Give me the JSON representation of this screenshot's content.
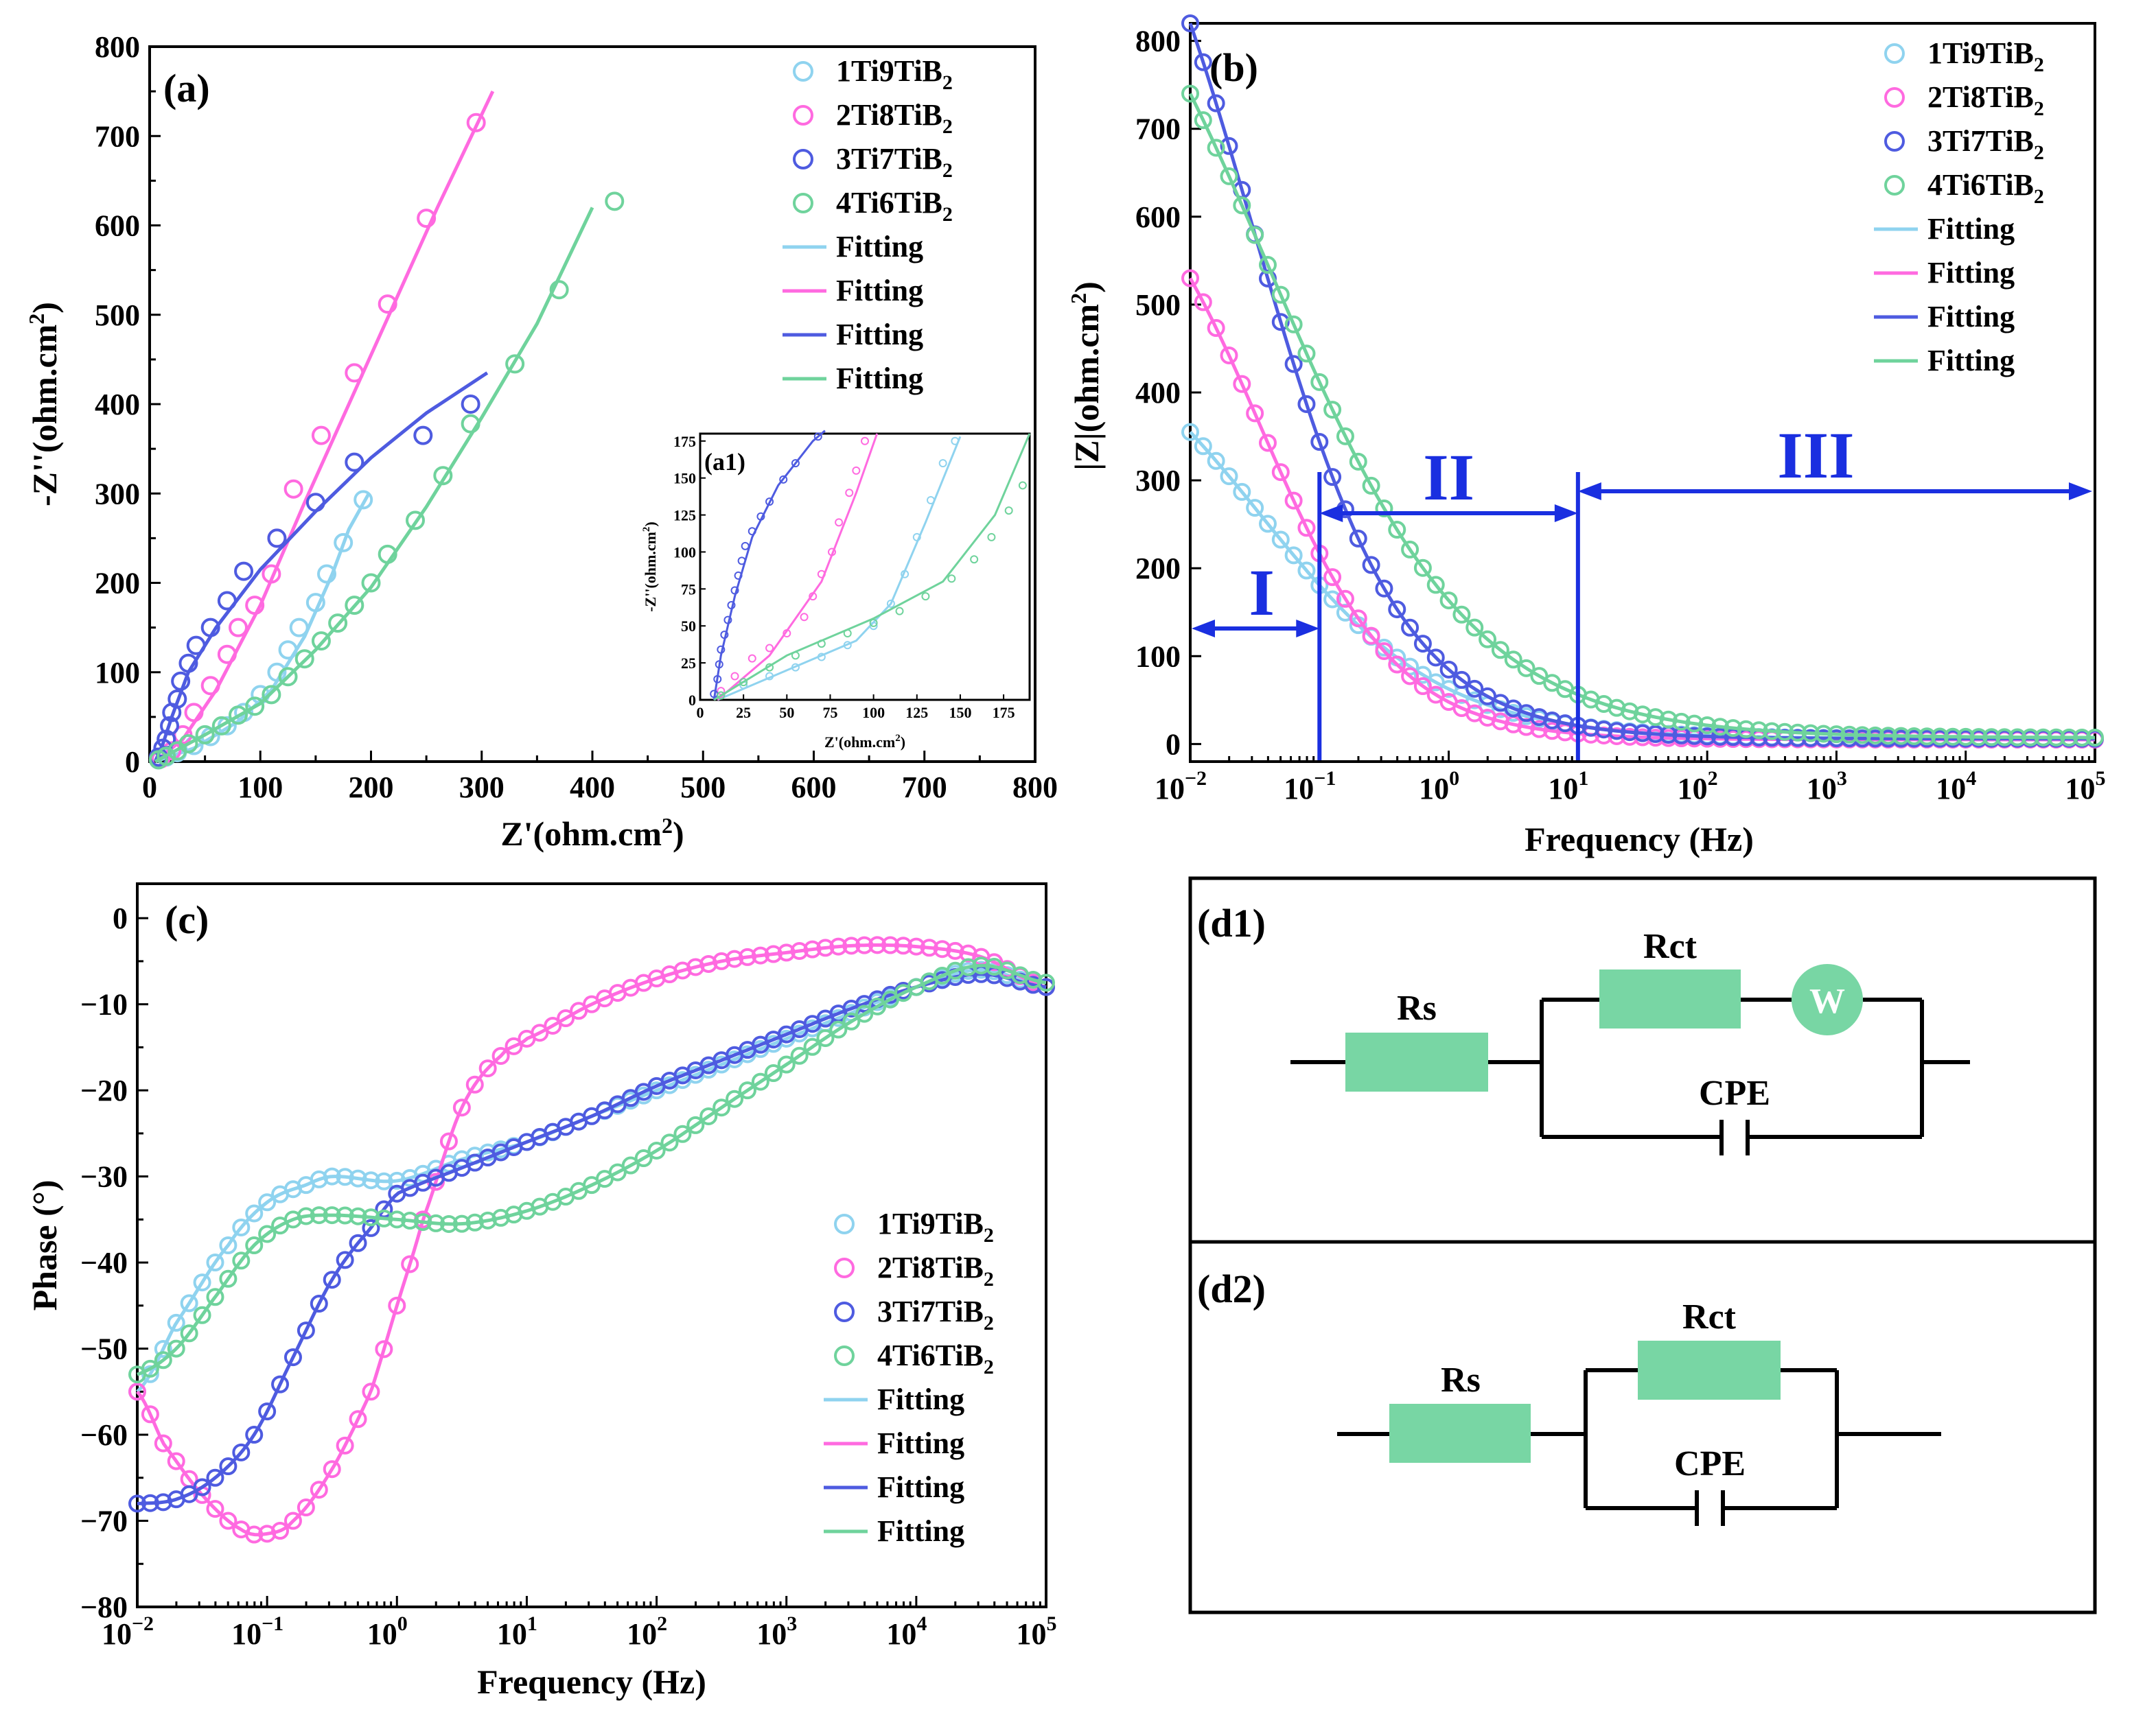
{
  "colors": {
    "s1": "#8fd3ef",
    "s2": "#ff6ae0",
    "s3": "#4e5be0",
    "s4": "#6fd39c",
    "region": "#1a2fe0",
    "resistor": "#78d6a4"
  },
  "legend": {
    "names": [
      "1Ti9TiB₂",
      "2Ti8TiB₂",
      "3Ti7TiB₂",
      "4Ti6TiB₂"
    ],
    "fit": "Fitting"
  },
  "chart_data": [
    {
      "id": "a",
      "type": "scatter",
      "panel_label": "(a)",
      "xlabel": "Z'(ohm.cm²)",
      "ylabel": "-Z''(ohm.cm²)",
      "xlim": [
        0,
        800
      ],
      "ylim": [
        0,
        800
      ],
      "xticks": [
        0,
        100,
        200,
        300,
        400,
        500,
        600,
        700,
        800
      ],
      "yticks": [
        0,
        100,
        200,
        300,
        400,
        500,
        600,
        700,
        800
      ],
      "legend_position": "top-right",
      "series": [
        {
          "name": "1Ti9TiB₂",
          "points": [
            [
              8,
              2
            ],
            [
              15,
              5
            ],
            [
              25,
              10
            ],
            [
              40,
              18
            ],
            [
              55,
              28
            ],
            [
              70,
              40
            ],
            [
              85,
              55
            ],
            [
              100,
              75
            ],
            [
              115,
              100
            ],
            [
              125,
              125
            ],
            [
              135,
              150
            ],
            [
              150,
              178
            ],
            [
              160,
              210
            ],
            [
              175,
              245
            ],
            [
              193,
              293
            ]
          ],
          "fit": [
            [
              5,
              0
            ],
            [
              40,
              15
            ],
            [
              80,
              45
            ],
            [
              110,
              80
            ],
            [
              140,
              140
            ],
            [
              165,
              210
            ],
            [
              180,
              260
            ],
            [
              198,
              300
            ]
          ]
        },
        {
          "name": "2Ti8TiB₂",
          "points": [
            [
              10,
              3
            ],
            [
              20,
              12
            ],
            [
              30,
              30
            ],
            [
              40,
              55
            ],
            [
              55,
              85
            ],
            [
              70,
              120
            ],
            [
              80,
              150
            ],
            [
              95,
              175
            ],
            [
              110,
              210
            ],
            [
              115,
              250
            ],
            [
              130,
              305
            ],
            [
              155,
              365
            ],
            [
              185,
              435
            ],
            [
              215,
              512
            ],
            [
              250,
              608
            ],
            [
              295,
              715
            ]
          ],
          "fit": [
            [
              5,
              0
            ],
            [
              30,
              25
            ],
            [
              60,
              80
            ],
            [
              100,
              175
            ],
            [
              140,
              290
            ],
            [
              180,
              400
            ],
            [
              220,
              510
            ],
            [
              260,
              620
            ],
            [
              310,
              750
            ]
          ]
        },
        {
          "name": "3Ti7TiB₂",
          "points": [
            [
              8,
              5
            ],
            [
              12,
              15
            ],
            [
              15,
              25
            ],
            [
              18,
              40
            ],
            [
              20,
              55
            ],
            [
              25,
              70
            ],
            [
              28,
              90
            ],
            [
              35,
              110
            ],
            [
              42,
              130
            ],
            [
              55,
              150
            ],
            [
              70,
              180
            ],
            [
              85,
              213
            ],
            [
              115,
              250
            ],
            [
              150,
              290
            ],
            [
              185,
              335
            ],
            [
              247,
              365
            ],
            [
              290,
              400
            ]
          ],
          "fit": [
            [
              5,
              0
            ],
            [
              12,
              20
            ],
            [
              20,
              50
            ],
            [
              35,
              100
            ],
            [
              60,
              150
            ],
            [
              100,
              215
            ],
            [
              150,
              280
            ],
            [
              200,
              340
            ],
            [
              250,
              390
            ],
            [
              305,
              435
            ]
          ]
        },
        {
          "name": "4Ti6TiB₂",
          "points": [
            [
              8,
              2
            ],
            [
              15,
              6
            ],
            [
              25,
              12
            ],
            [
              35,
              20
            ],
            [
              50,
              30
            ],
            [
              65,
              40
            ],
            [
              80,
              52
            ],
            [
              95,
              62
            ],
            [
              110,
              75
            ],
            [
              125,
              95
            ],
            [
              140,
              115
            ],
            [
              155,
              135
            ],
            [
              170,
              155
            ],
            [
              185,
              175
            ],
            [
              200,
              200
            ],
            [
              215,
              232
            ],
            [
              240,
              270
            ],
            [
              265,
              320
            ],
            [
              290,
              378
            ],
            [
              330,
              445
            ],
            [
              370,
              528
            ],
            [
              420,
              627
            ]
          ],
          "fit": [
            [
              5,
              0
            ],
            [
              50,
              30
            ],
            [
              100,
              65
            ],
            [
              150,
              125
            ],
            [
              200,
              195
            ],
            [
              250,
              285
            ],
            [
              300,
              385
            ],
            [
              350,
              490
            ],
            [
              400,
              620
            ]
          ]
        }
      ],
      "inset": {
        "panel_label": "(a1)",
        "xlabel": "Z'(ohm.cm²)",
        "ylabel": "-Z''(ohm.cm²)",
        "xlim": [
          0,
          190
        ],
        "ylim": [
          0,
          180
        ],
        "xticks": [
          0,
          25,
          50,
          75,
          100,
          125,
          150,
          175
        ],
        "yticks": [
          0,
          25,
          50,
          75,
          100,
          125,
          150,
          175
        ]
      }
    },
    {
      "id": "b",
      "type": "scatter",
      "panel_label": "(b)",
      "xlabel": "Frequency (Hz)",
      "ylabel": "|Z|(ohm.cm²)",
      "xscale": "log",
      "xlim": [
        0.01,
        100000
      ],
      "ylim": [
        -20,
        820
      ],
      "xtick_exponents": [
        "-2",
        "-1",
        "0",
        "1",
        "2",
        "3",
        "4",
        "5"
      ],
      "yticks": [
        0,
        100,
        200,
        300,
        400,
        500,
        600,
        700,
        800
      ],
      "legend_position": "top-right",
      "regions": [
        "I",
        "II",
        "III"
      ],
      "region_bounds": [
        0.01,
        0.1,
        10,
        100000
      ],
      "series": [
        {
          "name": "1Ti9TiB₂",
          "z0": 355,
          "zinf": 6,
          "fc": 0.035,
          "p": 0.62
        },
        {
          "name": "2Ti8TiB₂",
          "z0": 530,
          "zinf": 5,
          "fc": 0.035,
          "p": 0.82
        },
        {
          "name": "3Ti7TiB₂",
          "z0": 820,
          "zinf": 6,
          "fc": 0.03,
          "p": 0.75
        },
        {
          "name": "4Ti6TiB₂",
          "z0": 740,
          "zinf": 7,
          "fc": 0.04,
          "p": 0.55
        }
      ]
    },
    {
      "id": "c",
      "type": "scatter",
      "panel_label": "(c)",
      "xlabel": "Frequency (Hz)",
      "ylabel": "Phase (°)",
      "xscale": "log",
      "xlim": [
        0.01,
        100000
      ],
      "ylim": [
        -80,
        4
      ],
      "xtick_exponents": [
        "-2",
        "-1",
        "0",
        "1",
        "2",
        "3",
        "4",
        "5"
      ],
      "yticks": [
        0,
        -10,
        -20,
        -30,
        -40,
        -50,
        -60,
        -70,
        -80
      ],
      "legend_position": "bottom-right",
      "series": [
        {
          "name": "1Ti9TiB₂",
          "curve": [
            [
              -2,
              -55
            ],
            [
              -1.7,
              -47
            ],
            [
              -1.3,
              -38
            ],
            [
              -1,
              -33
            ],
            [
              -0.7,
              -31
            ],
            [
              -0.5,
              -30
            ],
            [
              0,
              -30.5
            ],
            [
              0.5,
              -28
            ],
            [
              1,
              -26
            ],
            [
              1.5,
              -23
            ],
            [
              2,
              -20
            ],
            [
              2.5,
              -17
            ],
            [
              3,
              -14
            ],
            [
              3.5,
              -11
            ],
            [
              4,
              -8
            ],
            [
              4.5,
              -6
            ],
            [
              5,
              -8
            ]
          ]
        },
        {
          "name": "2Ti8TiB₂",
          "curve": [
            [
              -2,
              -55
            ],
            [
              -1.8,
              -61
            ],
            [
              -1.5,
              -67
            ],
            [
              -1.2,
              -71
            ],
            [
              -1,
              -71.5
            ],
            [
              -0.8,
              -70
            ],
            [
              -0.5,
              -64
            ],
            [
              -0.2,
              -55
            ],
            [
              0,
              -45
            ],
            [
              0.2,
              -35
            ],
            [
              0.5,
              -22
            ],
            [
              0.8,
              -16
            ],
            [
              1,
              -14
            ],
            [
              1.5,
              -10
            ],
            [
              2,
              -7
            ],
            [
              2.5,
              -5
            ],
            [
              3,
              -4
            ],
            [
              3.5,
              -3.2
            ],
            [
              4,
              -3.3
            ],
            [
              4.5,
              -4.5
            ],
            [
              5,
              -8
            ]
          ]
        },
        {
          "name": "3Ti7TiB₂",
          "curve": [
            [
              -2,
              -68
            ],
            [
              -1.7,
              -67.5
            ],
            [
              -1.4,
              -65
            ],
            [
              -1.1,
              -60
            ],
            [
              -0.8,
              -51
            ],
            [
              -0.5,
              -42
            ],
            [
              -0.2,
              -36
            ],
            [
              0,
              -32
            ],
            [
              0.5,
              -29
            ],
            [
              1,
              -26
            ],
            [
              1.5,
              -23
            ],
            [
              2,
              -19.5
            ],
            [
              2.5,
              -16.5
            ],
            [
              3,
              -13.5
            ],
            [
              3.5,
              -10.5
            ],
            [
              4,
              -8
            ],
            [
              4.5,
              -6.5
            ],
            [
              5,
              -8
            ]
          ]
        },
        {
          "name": "4Ti6TiB₂",
          "curve": [
            [
              -2,
              -53
            ],
            [
              -1.7,
              -50
            ],
            [
              -1.4,
              -44
            ],
            [
              -1.1,
              -38
            ],
            [
              -0.8,
              -35
            ],
            [
              -0.5,
              -34.5
            ],
            [
              0,
              -35
            ],
            [
              0.5,
              -35.5
            ],
            [
              1,
              -34
            ],
            [
              1.5,
              -31
            ],
            [
              2,
              -27
            ],
            [
              2.5,
              -22
            ],
            [
              3,
              -17
            ],
            [
              3.5,
              -12
            ],
            [
              4,
              -8
            ],
            [
              4.5,
              -5.5
            ],
            [
              5,
              -7.5
            ]
          ]
        }
      ]
    }
  ],
  "circuits": {
    "d1": {
      "panel_label": "(d1)",
      "rs": "Rs",
      "rct": "Rct",
      "w": "W",
      "cpe": "CPE"
    },
    "d2": {
      "panel_label": "(d2)",
      "rs": "Rs",
      "rct": "Rct",
      "cpe": "CPE"
    }
  }
}
